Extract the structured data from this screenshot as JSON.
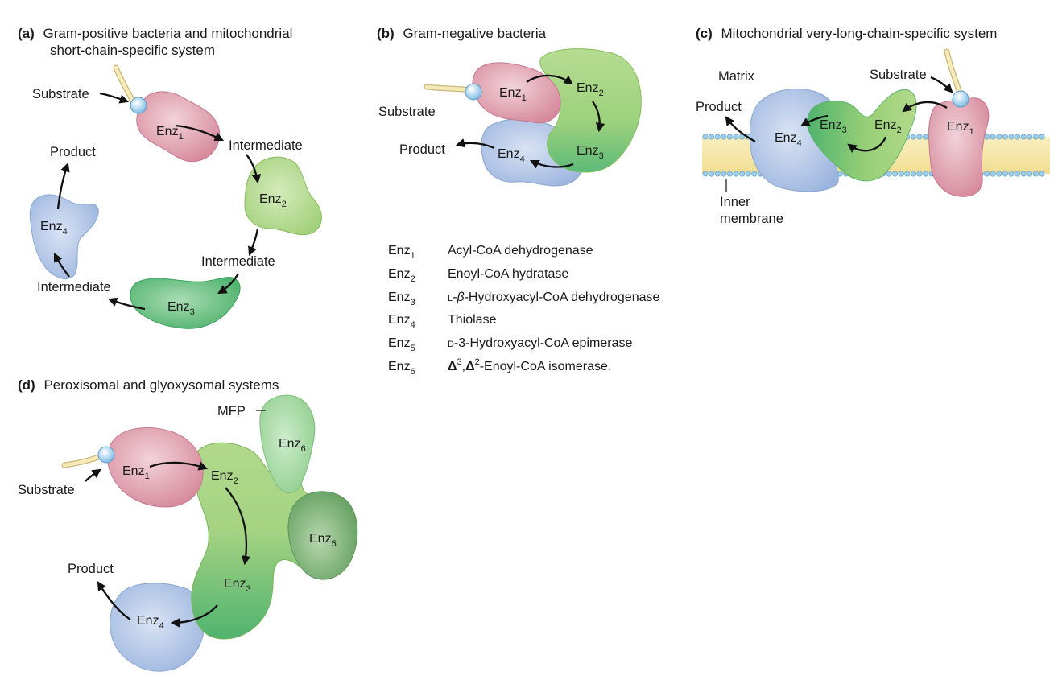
{
  "panels": {
    "a": {
      "letter": "(a)",
      "title_line1": "Gram-positive bacteria and mitochondrial",
      "title_line2": "short-chain-specific system",
      "substrate": "Substrate",
      "intermediate1": "Intermediate",
      "intermediate2": "Intermediate",
      "intermediate3": "Intermediate",
      "product": "Product"
    },
    "b": {
      "letter": "(b)",
      "title": "Gram-negative bacteria",
      "substrate": "Substrate",
      "product": "Product"
    },
    "c": {
      "letter": "(c)",
      "title": "Mitochondrial very-long-chain-specific system",
      "matrix": "Matrix",
      "substrate": "Substrate",
      "product": "Product",
      "membrane_line1": "Inner",
      "membrane_line2": "membrane"
    },
    "d": {
      "letter": "(d)",
      "title": "Peroxisomal and glyoxysomal systems",
      "mfp": "MFP",
      "substrate": "Substrate",
      "product": "Product"
    }
  },
  "enzyme": {
    "prefix": "Enz",
    "n1": "1",
    "n2": "2",
    "n3": "3",
    "n4": "4",
    "n5": "5",
    "n6": "6"
  },
  "legend": [
    {
      "abbr": "Enz",
      "sub": "1",
      "name": "Acyl-CoA dehydrogenase"
    },
    {
      "abbr": "Enz",
      "sub": "2",
      "name": "Enoyl-CoA hydratase"
    },
    {
      "abbr": "Enz",
      "sub": "3",
      "prefix": "L",
      "name_rest": "-Hydroxyacyl-CoA dehydrogenase",
      "beta": "-β"
    },
    {
      "abbr": "Enz",
      "sub": "4",
      "name": "Thiolase"
    },
    {
      "abbr": "Enz",
      "sub": "5",
      "prefix": "D",
      "name_rest": "-3-Hydroxyacyl-CoA epimerase"
    },
    {
      "abbr": "Enz",
      "sub": "6",
      "d1": "Δ",
      "s1": "3",
      "sep": ",",
      "d2": "Δ",
      "s2": "2",
      "name_rest": "-Enoyl-CoA isomerase."
    }
  ],
  "colors": {
    "enz1": "#dc97a6",
    "enz2": "#aed58a",
    "enz3": "#5cba78",
    "enz4": "#a8bfe2",
    "enz5": "#6fa86b",
    "enz6": "#9dd79b",
    "substrate_ball": "#9ccdec",
    "chain": "#f4e6ad",
    "membrane": "#f6e6a6"
  }
}
